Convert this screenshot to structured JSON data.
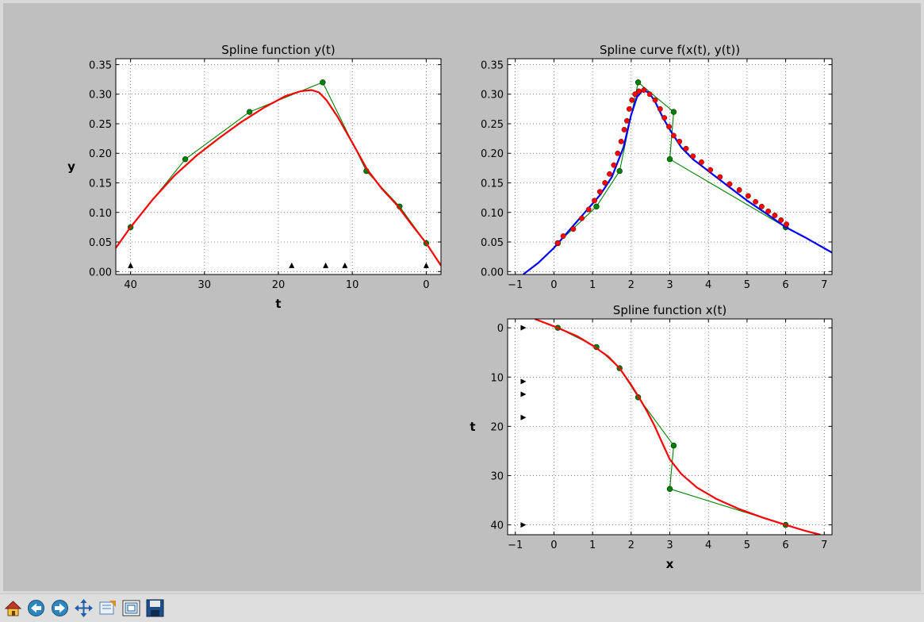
{
  "toolbar": {
    "buttons": [
      {
        "name": "home-button",
        "icon": "home-icon"
      },
      {
        "name": "back-button",
        "icon": "arrow-left-icon"
      },
      {
        "name": "forward-button",
        "icon": "arrow-right-icon"
      },
      {
        "name": "pan-button",
        "icon": "move-arrows-icon"
      },
      {
        "name": "zoom-button",
        "icon": "zoom-rect-icon"
      },
      {
        "name": "subplots-button",
        "icon": "configure-subplots-icon"
      },
      {
        "name": "save-button",
        "icon": "floppy-disk-icon"
      }
    ]
  },
  "chart_data": [
    {
      "type": "line",
      "title": "Spline function y(t)",
      "xlabel": "t",
      "ylabel": "y",
      "xlim": [
        42,
        -2
      ],
      "ylim": [
        -0.005,
        0.36
      ],
      "x_ticks": [
        40,
        30,
        20,
        10,
        0
      ],
      "x_tick_labels": [
        "40",
        "30",
        "20",
        "10",
        "0"
      ],
      "y_ticks": [
        0.0,
        0.05,
        0.1,
        0.15,
        0.2,
        0.25,
        0.3,
        0.35
      ],
      "y_tick_labels": [
        "0.00",
        "0.05",
        "0.10",
        "0.15",
        "0.20",
        "0.25",
        "0.30",
        "0.35"
      ],
      "grid": true,
      "series": [
        {
          "role": "control-polygon",
          "color": "#008000",
          "marker": "circle",
          "x": [
            40,
            32.6,
            23.9,
            14,
            8.1,
            3.6,
            0
          ],
          "y": [
            0.075,
            0.19,
            0.27,
            0.32,
            0.17,
            0.11,
            0.048
          ]
        },
        {
          "role": "spline",
          "color": "#ff0000",
          "x": [
            42,
            40,
            37,
            34,
            31,
            28,
            25,
            22,
            19,
            17,
            15.5,
            14.5,
            13.5,
            12,
            10,
            8,
            6,
            4,
            2,
            0,
            -2
          ],
          "y": [
            0.04,
            0.075,
            0.122,
            0.163,
            0.197,
            0.226,
            0.253,
            0.277,
            0.297,
            0.305,
            0.307,
            0.303,
            0.29,
            0.262,
            0.218,
            0.173,
            0.14,
            0.113,
            0.08,
            0.048,
            0.01
          ]
        },
        {
          "role": "knots",
          "color": "#000000",
          "marker": "triangle-up",
          "x": [
            40,
            18.2,
            13.6,
            11,
            0
          ],
          "y": [
            0.01,
            0.01,
            0.01,
            0.01,
            0.01
          ]
        }
      ]
    },
    {
      "type": "line",
      "title": "Spline curve f(x(t), y(t))",
      "xlabel": "",
      "ylabel": "",
      "xlim": [
        -1.2,
        7.2
      ],
      "ylim": [
        -0.005,
        0.36
      ],
      "x_ticks": [
        -1,
        0,
        1,
        2,
        3,
        4,
        5,
        6,
        7
      ],
      "x_tick_labels": [
        "−1",
        "0",
        "1",
        "2",
        "3",
        "4",
        "5",
        "6",
        "7"
      ],
      "y_ticks": [
        0.0,
        0.05,
        0.1,
        0.15,
        0.2,
        0.25,
        0.3,
        0.35
      ],
      "y_tick_labels": [
        "0.00",
        "0.05",
        "0.10",
        "0.15",
        "0.20",
        "0.25",
        "0.30",
        "0.35"
      ],
      "grid": true,
      "series": [
        {
          "role": "control-polygon",
          "color": "#008000",
          "marker": "circle",
          "x": [
            0.1,
            1.1,
            1.7,
            2.18,
            3.1,
            3.0,
            6.0
          ],
          "y": [
            0.048,
            0.11,
            0.17,
            0.32,
            0.27,
            0.19,
            0.075
          ]
        },
        {
          "role": "curve",
          "color": "#0000ff",
          "x": [
            -0.8,
            -0.4,
            0,
            0.4,
            0.8,
            1.2,
            1.5,
            1.8,
            2.0,
            2.15,
            2.3,
            2.45,
            2.6,
            2.8,
            3.0,
            3.3,
            3.6,
            4.0,
            4.5,
            5.0,
            5.5,
            6.0,
            6.5,
            7.2
          ],
          "y": [
            -0.005,
            0.015,
            0.04,
            0.07,
            0.1,
            0.13,
            0.16,
            0.21,
            0.265,
            0.295,
            0.307,
            0.303,
            0.29,
            0.263,
            0.24,
            0.21,
            0.19,
            0.17,
            0.145,
            0.12,
            0.098,
            0.075,
            0.058,
            0.032
          ]
        },
        {
          "role": "sample-points",
          "color": "#ff0000",
          "marker": "circle",
          "x": [
            0.1,
            0.24,
            0.5,
            0.72,
            0.9,
            1.05,
            1.19,
            1.32,
            1.44,
            1.55,
            1.65,
            1.74,
            1.82,
            1.89,
            1.95,
            2.02,
            2.1,
            2.2,
            2.33,
            2.48,
            2.62,
            2.75,
            2.86,
            2.98,
            3.1,
            3.25,
            3.42,
            3.6,
            3.82,
            4.05,
            4.3,
            4.55,
            4.8,
            5.03,
            5.22,
            5.38,
            5.55,
            5.72,
            5.88,
            6.02
          ],
          "y": [
            0.048,
            0.06,
            0.072,
            0.09,
            0.105,
            0.12,
            0.135,
            0.15,
            0.165,
            0.18,
            0.2,
            0.22,
            0.24,
            0.255,
            0.275,
            0.29,
            0.3,
            0.305,
            0.307,
            0.3,
            0.29,
            0.275,
            0.26,
            0.245,
            0.23,
            0.22,
            0.208,
            0.195,
            0.185,
            0.172,
            0.16,
            0.148,
            0.138,
            0.128,
            0.118,
            0.11,
            0.102,
            0.095,
            0.087,
            0.08
          ]
        }
      ]
    },
    {
      "type": "line",
      "title": "Spline function x(t)",
      "xlabel": "x",
      "ylabel": "t",
      "xlim": [
        -1.2,
        7.2
      ],
      "ylim": [
        42,
        -1.8
      ],
      "x_ticks": [
        -1,
        0,
        1,
        2,
        3,
        4,
        5,
        6,
        7
      ],
      "x_tick_labels": [
        "−1",
        "0",
        "1",
        "2",
        "3",
        "4",
        "5",
        "6",
        "7"
      ],
      "y_ticks": [
        0,
        10,
        20,
        30,
        40
      ],
      "y_tick_labels": [
        "0",
        "10",
        "20",
        "30",
        "40"
      ],
      "grid": true,
      "series": [
        {
          "role": "control-polygon",
          "color": "#008000",
          "marker": "circle",
          "x": [
            0.1,
            1.1,
            1.7,
            2.18,
            3.1,
            3.0,
            6.0
          ],
          "y": [
            0,
            3.9,
            8.2,
            14.1,
            23.9,
            32.7,
            40
          ]
        },
        {
          "role": "spline",
          "color": "#ff0000",
          "x": [
            -0.5,
            0.1,
            0.6,
            1.0,
            1.4,
            1.7,
            2.0,
            2.2,
            2.4,
            2.6,
            2.8,
            3.0,
            3.3,
            3.7,
            4.2,
            4.8,
            5.4,
            6.0,
            6.5,
            6.9
          ],
          "y": [
            -1.8,
            0,
            1.7,
            3.6,
            5.8,
            8.2,
            11.6,
            14.1,
            16.8,
            19.8,
            23.3,
            26.7,
            29.7,
            32.4,
            34.7,
            36.8,
            38.5,
            40,
            41.2,
            42
          ]
        },
        {
          "role": "knots",
          "color": "#000000",
          "marker": "triangle-right",
          "x": [
            -0.8,
            -0.8,
            -0.8,
            -0.8,
            -0.8
          ],
          "y": [
            0,
            10.9,
            13.5,
            18.2,
            40
          ]
        }
      ]
    }
  ]
}
